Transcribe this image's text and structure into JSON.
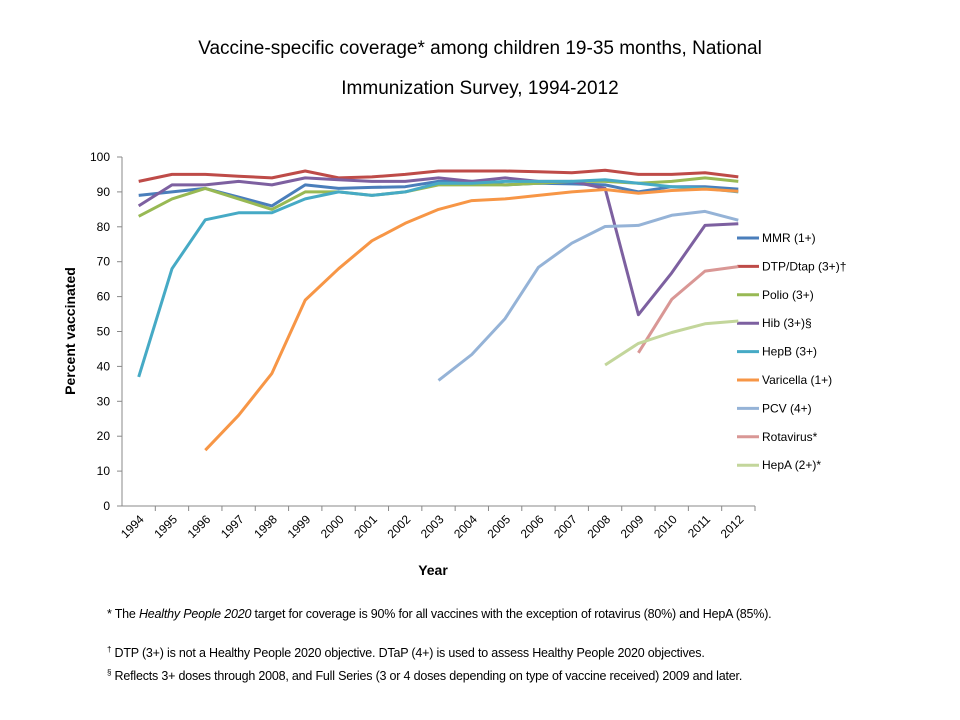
{
  "chart_data": {
    "type": "line",
    "title_line1": "Vaccine-specific coverage* among children 19-35 months, National",
    "title_line2": "Immunization Survey, 1994-2012",
    "xlabel": "Year",
    "ylabel": "Percent vaccinated",
    "ylim": [
      0,
      100
    ],
    "yticks": [
      "0",
      "10",
      "20",
      "30",
      "40",
      "50",
      "60",
      "70",
      "80",
      "90",
      "100"
    ],
    "x": [
      "1994",
      "1995",
      "1996",
      "1997",
      "1998",
      "1999",
      "2000",
      "2001",
      "2002",
      "2003",
      "2004",
      "2005",
      "2006",
      "2007",
      "2008",
      "2009",
      "2010",
      "2011",
      "2012"
    ],
    "grid": false,
    "legend_position": "right",
    "series": [
      {
        "name": "MMR (1+)",
        "color": "#4a7ebb",
        "values": [
          89,
          90,
          91,
          88.5,
          86,
          92,
          91,
          91.3,
          91.5,
          93,
          93,
          92,
          92.5,
          92.3,
          92,
          90,
          91.5,
          91.5,
          90.8
        ]
      },
      {
        "name": "DTP/Dtap (3+)†",
        "color": "#be4b48",
        "values": [
          93,
          95,
          95,
          94.5,
          94,
          96,
          94,
          94.3,
          95,
          96,
          96,
          96,
          95.8,
          95.5,
          96.2,
          95,
          95,
          95.5,
          94.3
        ]
      },
      {
        "name": "Polio (3+)",
        "color": "#98b954",
        "values": [
          83,
          88,
          91,
          88,
          85,
          90,
          90,
          89,
          90,
          92,
          92,
          92,
          92.5,
          93,
          93,
          92.5,
          93,
          94,
          93
        ]
      },
      {
        "name": "Hib (3+)§",
        "color": "#7d60a0",
        "values": [
          86,
          92,
          92,
          93,
          92,
          94,
          93.5,
          93,
          93,
          94,
          93,
          94,
          93,
          93,
          91,
          54.8,
          66.8,
          80.4,
          80.9
        ]
      },
      {
        "name": "HepB (3+)",
        "color": "#46aac5",
        "values": [
          37,
          68,
          82,
          84,
          84,
          88,
          90,
          89,
          90,
          92.5,
          92.5,
          93,
          93,
          93,
          93.5,
          92.5,
          91.5,
          91,
          90
        ]
      },
      {
        "name": "Varicella (1+)",
        "color": "#f79646",
        "values": [
          null,
          null,
          16,
          26,
          38,
          59,
          68,
          76,
          81,
          85,
          87.5,
          88,
          89,
          90,
          90.7,
          89.6,
          90.4,
          90.8,
          90.2
        ]
      },
      {
        "name": "PCV (4+)",
        "color": "#95b3d7",
        "values": [
          null,
          null,
          null,
          null,
          null,
          null,
          null,
          null,
          null,
          36,
          43.4,
          53.7,
          68.4,
          75.3,
          80.1,
          80.4,
          83.3,
          84.4,
          81.9
        ]
      },
      {
        "name": "Rotavirus*",
        "color": "#d99795",
        "values": [
          null,
          null,
          null,
          null,
          null,
          null,
          null,
          null,
          null,
          null,
          null,
          null,
          null,
          null,
          null,
          43.9,
          59.2,
          67.3,
          68.6
        ]
      },
      {
        "name": "HepA (2+)*",
        "color": "#c3d69b",
        "values": [
          null,
          null,
          null,
          null,
          null,
          null,
          null,
          null,
          null,
          null,
          null,
          null,
          null,
          null,
          40.4,
          46.6,
          49.7,
          52.2,
          53
        ]
      }
    ]
  },
  "footnotes": {
    "note1_prefix": "* The ",
    "note1_italic": "Healthy People 2020",
    "note1_rest": " target for coverage is 90% for all vaccines with the exception of rotavirus (80%) and HepA (85%).",
    "note2_mark": "†",
    "note2": " DTP (3+) is not a Healthy People  2020 objective.  DTaP (4+) is used to assess Healthy People 2020 objectives.",
    "note3_mark": "§",
    "note3": " Reflects 3+ doses through  2008, and Full Series (3 or 4 doses depending on type of vaccine received) 2009 and later."
  }
}
